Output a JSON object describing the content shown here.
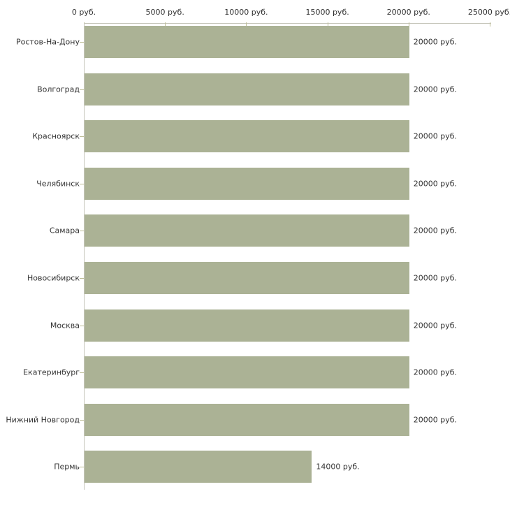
{
  "chart_data": {
    "type": "bar",
    "orientation": "horizontal",
    "title": "",
    "xlabel": "",
    "ylabel": "",
    "xlim": [
      0,
      25000
    ],
    "grid": false,
    "legend": false,
    "categories": [
      "Ростов-На-Дону",
      "Волгоград",
      "Красноярск",
      "Челябинск",
      "Самара",
      "Новосибирск",
      "Москва",
      "Екатеринбург",
      "Нижний Новгород",
      "Пермь"
    ],
    "values": [
      20000,
      20000,
      20000,
      20000,
      20000,
      20000,
      20000,
      20000,
      20000,
      14000
    ],
    "value_labels": [
      "20000 руб.",
      "20000 руб.",
      "20000 руб.",
      "20000 руб.",
      "20000 руб.",
      "20000 руб.",
      "20000 руб.",
      "20000 руб.",
      "20000 руб.",
      "14000 руб."
    ],
    "x_ticks": [
      0,
      5000,
      10000,
      15000,
      20000,
      25000
    ],
    "x_tick_labels": [
      "0 руб.",
      "5000 руб.",
      "10000 руб.",
      "15000 руб.",
      "20000 руб.",
      "25000 руб."
    ],
    "colors": {
      "bar": "#abb295",
      "axis_line": "#c6c6ba",
      "tick_mark": "#bdbd96",
      "text": "#333333",
      "background": "#ffffff"
    }
  }
}
